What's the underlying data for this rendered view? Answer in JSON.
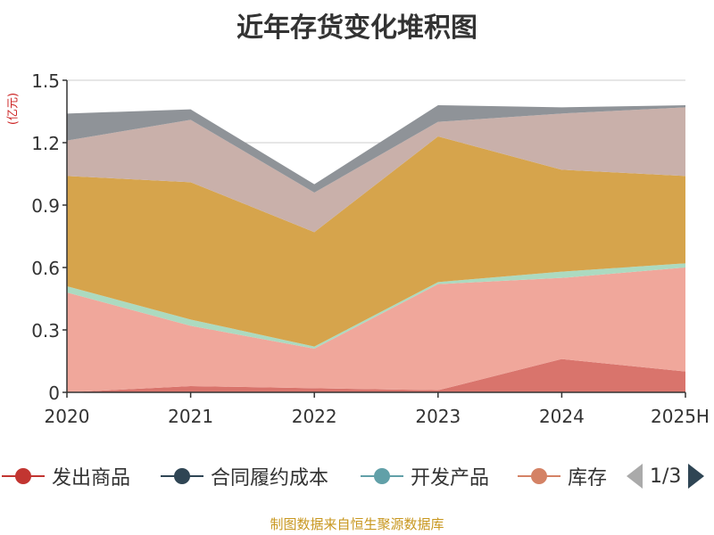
{
  "title": "近年存货变化堆积图",
  "unit_label": "(亿元)",
  "footer": "制图数据来自恒生聚源数据库",
  "legend": {
    "items": [
      {
        "label": "发出商品",
        "color": "#c23531",
        "icon": "legend-line-circle"
      },
      {
        "label": "合同履约成本",
        "color": "#2f4554",
        "icon": "legend-line-circle"
      },
      {
        "label": "开发产品",
        "color": "#61a0a8",
        "icon": "legend-line-circle"
      },
      {
        "label": "库存",
        "color": "#d48265",
        "icon": "legend-line-circle"
      }
    ],
    "page": "1/3",
    "prev_icon": "triangle-left-icon",
    "next_icon": "triangle-right-icon"
  },
  "chart_data": {
    "type": "area",
    "stacked": true,
    "categories": [
      "2020",
      "2021",
      "2022",
      "2023",
      "2024",
      "2025H"
    ],
    "y_ticks": [
      "0",
      "0.3",
      "0.6",
      "0.9",
      "1.2",
      "1.5"
    ],
    "ylim": [
      0,
      1.5
    ],
    "grid": true,
    "series": [
      {
        "name": "发出商品",
        "color": "#d9746c",
        "values": [
          0.0,
          0.03,
          0.02,
          0.01,
          0.16,
          0.1
        ]
      },
      {
        "name": "合同履约成本",
        "color": "#2f4554",
        "values": [
          0,
          0,
          0,
          0,
          0,
          0
        ]
      },
      {
        "name": "开发产品",
        "color": "#f0a79b",
        "values": [
          0.48,
          0.29,
          0.19,
          0.51,
          0.39,
          0.5
        ]
      },
      {
        "name": "库存",
        "color": "#acdac0",
        "values": [
          0.03,
          0.03,
          0.01,
          0.01,
          0.03,
          0.02
        ]
      },
      {
        "name": "",
        "color": "#d6a44c",
        "values": [
          0.53,
          0.66,
          0.55,
          0.7,
          0.49,
          0.42
        ]
      },
      {
        "name": "",
        "color": "#c9b0aa",
        "values": [
          0.17,
          0.3,
          0.19,
          0.07,
          0.27,
          0.33
        ]
      },
      {
        "name": "",
        "color": "#8f9398",
        "values": [
          0.13,
          0.05,
          0.04,
          0.08,
          0.03,
          0.01
        ]
      }
    ]
  }
}
